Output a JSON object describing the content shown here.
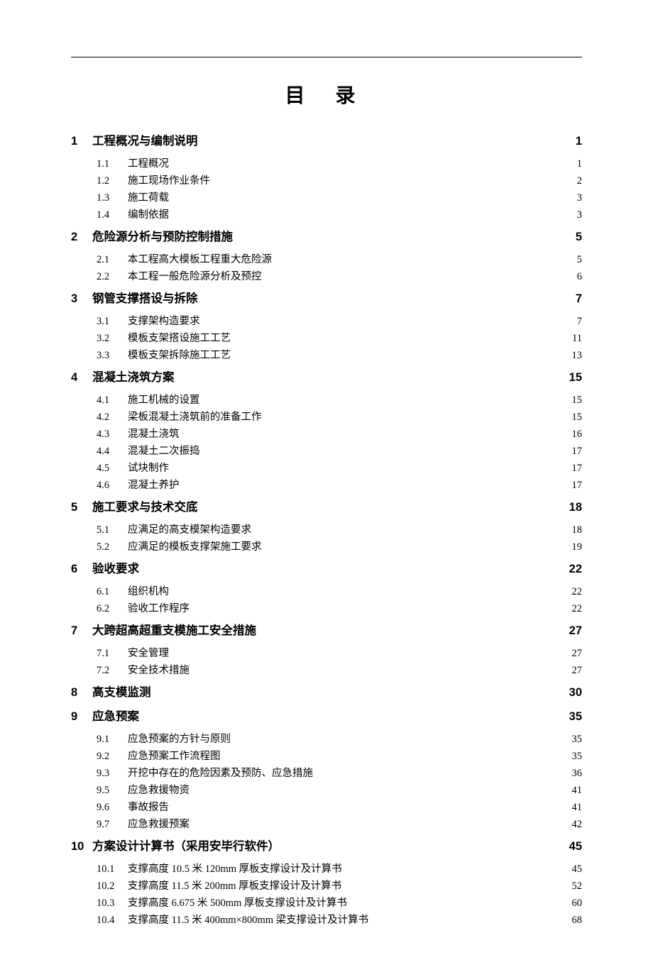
{
  "title": "目 录",
  "sections": [
    {
      "num": "1",
      "label": "工程概况与编制说明",
      "page": "1",
      "items": [
        {
          "num": "1.1",
          "label": "工程概况",
          "page": "1"
        },
        {
          "num": "1.2",
          "label": "施工现场作业条件",
          "page": "2"
        },
        {
          "num": "1.3",
          "label": "施工荷载",
          "page": "3"
        },
        {
          "num": "1.4",
          "label": "编制依据",
          "page": "3"
        }
      ]
    },
    {
      "num": "2",
      "label": "危险源分析与预防控制措施",
      "page": "5",
      "items": [
        {
          "num": "2.1",
          "label": "本工程高大模板工程重大危险源",
          "page": "5"
        },
        {
          "num": "2.2",
          "label": "本工程一般危险源分析及预控",
          "page": "6"
        }
      ]
    },
    {
      "num": "3",
      "label": "钢管支撑搭设与拆除",
      "page": "7",
      "items": [
        {
          "num": "3.1",
          "label": "支撑架构造要求",
          "page": "7"
        },
        {
          "num": "3.2",
          "label": "模板支架搭设施工工艺",
          "page": "11"
        },
        {
          "num": "3.3",
          "label": "模板支架拆除施工工艺",
          "page": "13"
        }
      ]
    },
    {
      "num": "4",
      "label": "混凝土浇筑方案",
      "page": "15",
      "items": [
        {
          "num": "4.1",
          "label": "施工机械的设置",
          "page": "15"
        },
        {
          "num": "4.2",
          "label": "梁板混凝土浇筑前的准备工作",
          "page": "15"
        },
        {
          "num": "4.3",
          "label": "混凝土浇筑",
          "page": "16"
        },
        {
          "num": "4.4",
          "label": "混凝土二次振捣",
          "page": "17"
        },
        {
          "num": "4.5",
          "label": "试块制作",
          "page": "17"
        },
        {
          "num": "4.6",
          "label": "混凝土养护",
          "page": "17"
        }
      ]
    },
    {
      "num": "5",
      "label": "施工要求与技术交底",
      "page": "18",
      "items": [
        {
          "num": "5.1",
          "label": "应满足的高支模架构造要求",
          "page": "18"
        },
        {
          "num": "5.2",
          "label": "应满足的模板支撑架施工要求",
          "page": "19"
        }
      ]
    },
    {
      "num": "6",
      "label": "验收要求",
      "page": "22",
      "items": [
        {
          "num": "6.1",
          "label": "组织机构",
          "page": "22"
        },
        {
          "num": "6.2",
          "label": "验收工作程序",
          "page": "22"
        }
      ]
    },
    {
      "num": "7",
      "label": "大跨超高超重支模施工安全措施",
      "page": "27",
      "items": [
        {
          "num": "7.1",
          "label": "安全管理",
          "page": "27"
        },
        {
          "num": "7.2",
          "label": "安全技术措施",
          "page": "27"
        }
      ]
    },
    {
      "num": "8",
      "label": "高支模监测",
      "page": "30",
      "items": []
    },
    {
      "num": "9",
      "label": " 应急预案",
      "page": "35",
      "items": [
        {
          "num": "9.1",
          "label": "应急预案的方针与原则",
          "page": "35"
        },
        {
          "num": "9.2",
          "label": "应急预案工作流程图",
          "page": "35"
        },
        {
          "num": "9.3",
          "label": "开挖中存在的危险因素及预防、应急措施",
          "page": "36"
        },
        {
          "num": "9.5",
          "label": "应急救援物资",
          "page": "41"
        },
        {
          "num": "9.6",
          "label": "事故报告",
          "page": "41"
        },
        {
          "num": "9.7",
          "label": "应急救援预案",
          "page": "42"
        }
      ]
    },
    {
      "num": "10",
      "label": "方案设计计算书（采用安毕行软件）",
      "page": "45",
      "items": [
        {
          "num": "10.1",
          "label": "支撑高度 10.5 米 120mm 厚板支撑设计及计算书",
          "page": "45"
        },
        {
          "num": "10.2",
          "label": "支撑高度 11.5 米 200mm 厚板支撑设计及计算书",
          "page": "52"
        },
        {
          "num": "10.3",
          "label": "支撑高度 6.675 米 500mm 厚板支撑设计及计算书",
          "page": "60"
        },
        {
          "num": "10.4",
          "label": "支撑高度 11.5 米 400mm×800mm 梁支撑设计及计算书",
          "page": "68"
        }
      ]
    }
  ]
}
